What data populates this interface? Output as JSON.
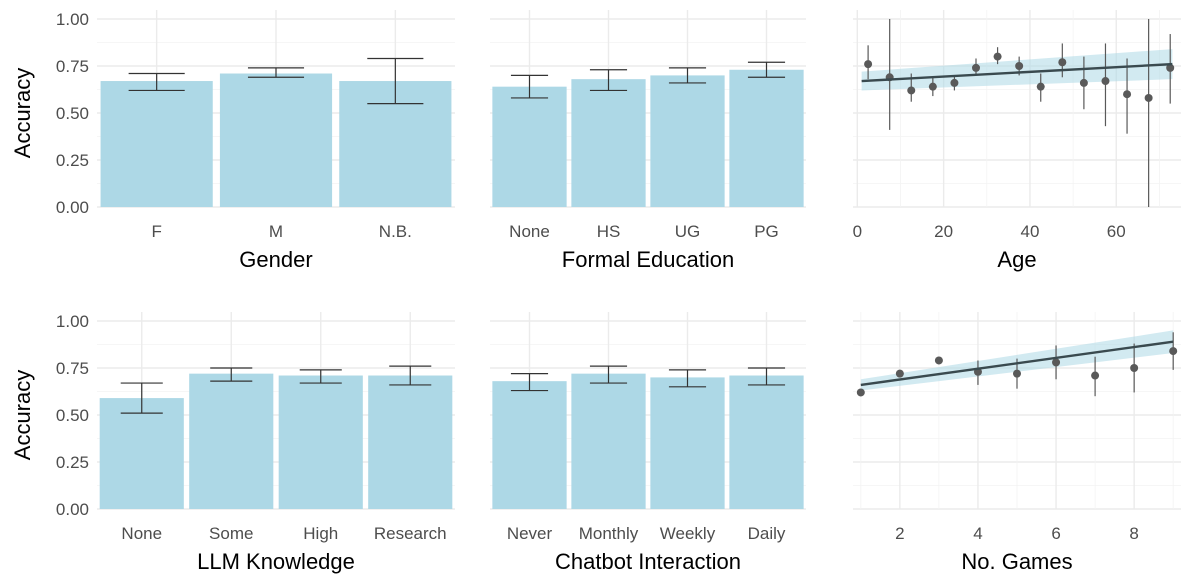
{
  "chart_data": [
    {
      "type": "bar",
      "xlabel": "Gender",
      "ylabel": "Accuracy",
      "ylim": [
        0,
        1.0
      ],
      "yticks": [
        "0.00",
        "0.25",
        "0.50",
        "0.75",
        "1.00"
      ],
      "categories": [
        "F",
        "M",
        "N.B."
      ],
      "values": [
        0.67,
        0.71,
        0.67
      ],
      "err_low": [
        0.62,
        0.69,
        0.55
      ],
      "err_high": [
        0.71,
        0.74,
        0.79
      ]
    },
    {
      "type": "bar",
      "xlabel": "Formal Education",
      "ylabel": "",
      "ylim": [
        0,
        1.0
      ],
      "categories": [
        "None",
        "HS",
        "UG",
        "PG"
      ],
      "values": [
        0.64,
        0.68,
        0.7,
        0.73
      ],
      "err_low": [
        0.58,
        0.62,
        0.66,
        0.69
      ],
      "err_high": [
        0.7,
        0.73,
        0.74,
        0.77
      ]
    },
    {
      "type": "scatter",
      "xlabel": "Age",
      "ylabel": "",
      "xlim": [
        -1,
        75
      ],
      "ylim": [
        0,
        1.0
      ],
      "xticks": [
        0,
        20,
        40,
        60
      ],
      "points": [
        {
          "x": 2.5,
          "y": 0.76,
          "lo": 0.68,
          "hi": 0.86
        },
        {
          "x": 7.5,
          "y": 0.69,
          "lo": 0.41,
          "hi": 1.0
        },
        {
          "x": 12.5,
          "y": 0.62,
          "lo": 0.56,
          "hi": 0.71
        },
        {
          "x": 17.5,
          "y": 0.64,
          "lo": 0.59,
          "hi": 0.69
        },
        {
          "x": 22.5,
          "y": 0.66,
          "lo": 0.62,
          "hi": 0.7
        },
        {
          "x": 27.5,
          "y": 0.74,
          "lo": 0.7,
          "hi": 0.79
        },
        {
          "x": 32.5,
          "y": 0.8,
          "lo": 0.76,
          "hi": 0.85
        },
        {
          "x": 37.5,
          "y": 0.75,
          "lo": 0.7,
          "hi": 0.8
        },
        {
          "x": 42.5,
          "y": 0.64,
          "lo": 0.56,
          "hi": 0.71
        },
        {
          "x": 47.5,
          "y": 0.77,
          "lo": 0.69,
          "hi": 0.87
        },
        {
          "x": 52.5,
          "y": 0.66,
          "lo": 0.52,
          "hi": 0.8
        },
        {
          "x": 57.5,
          "y": 0.67,
          "lo": 0.43,
          "hi": 0.87
        },
        {
          "x": 62.5,
          "y": 0.6,
          "lo": 0.39,
          "hi": 0.79
        },
        {
          "x": 67.5,
          "y": 0.58,
          "lo": 0.0,
          "hi": 1.0
        },
        {
          "x": 72.5,
          "y": 0.74,
          "lo": 0.55,
          "hi": 0.92
        }
      ],
      "fit": {
        "x": [
          1,
          73
        ],
        "y": [
          0.67,
          0.76
        ],
        "band_lo": [
          0.62,
          0.68
        ],
        "band_hi": [
          0.72,
          0.84
        ]
      }
    },
    {
      "type": "bar",
      "xlabel": "LLM Knowledge",
      "ylabel": "Accuracy",
      "ylim": [
        0,
        1.0
      ],
      "yticks": [
        "0.00",
        "0.25",
        "0.50",
        "0.75",
        "1.00"
      ],
      "categories": [
        "None",
        "Some",
        "High",
        "Research"
      ],
      "values": [
        0.59,
        0.72,
        0.71,
        0.71
      ],
      "err_low": [
        0.51,
        0.68,
        0.67,
        0.66
      ],
      "err_high": [
        0.67,
        0.75,
        0.74,
        0.76
      ]
    },
    {
      "type": "bar",
      "xlabel": "Chatbot Interaction",
      "ylabel": "",
      "ylim": [
        0,
        1.0
      ],
      "categories": [
        "Never",
        "Monthly",
        "Weekly",
        "Daily"
      ],
      "values": [
        0.68,
        0.72,
        0.7,
        0.71
      ],
      "err_low": [
        0.63,
        0.67,
        0.65,
        0.66
      ],
      "err_high": [
        0.72,
        0.76,
        0.74,
        0.75
      ]
    },
    {
      "type": "scatter",
      "xlabel": "No. Games",
      "ylabel": "",
      "xlim": [
        0.8,
        9.2
      ],
      "ylim": [
        0,
        1.0
      ],
      "xticks": [
        2,
        4,
        6,
        8
      ],
      "points": [
        {
          "x": 1,
          "y": 0.62,
          "lo": 0.61,
          "hi": 0.63
        },
        {
          "x": 2,
          "y": 0.72,
          "lo": 0.7,
          "hi": 0.74
        },
        {
          "x": 3,
          "y": 0.79,
          "lo": 0.77,
          "hi": 0.81
        },
        {
          "x": 4,
          "y": 0.73,
          "lo": 0.66,
          "hi": 0.79
        },
        {
          "x": 5,
          "y": 0.72,
          "lo": 0.64,
          "hi": 0.8
        },
        {
          "x": 6,
          "y": 0.78,
          "lo": 0.69,
          "hi": 0.87
        },
        {
          "x": 7,
          "y": 0.71,
          "lo": 0.6,
          "hi": 0.81
        },
        {
          "x": 8,
          "y": 0.75,
          "lo": 0.62,
          "hi": 0.88
        },
        {
          "x": 9,
          "y": 0.84,
          "lo": 0.74,
          "hi": 0.94
        }
      ],
      "fit": {
        "x": [
          1,
          9
        ],
        "y": [
          0.66,
          0.89
        ],
        "band_lo": [
          0.63,
          0.83
        ],
        "band_hi": [
          0.69,
          0.95
        ]
      }
    }
  ]
}
